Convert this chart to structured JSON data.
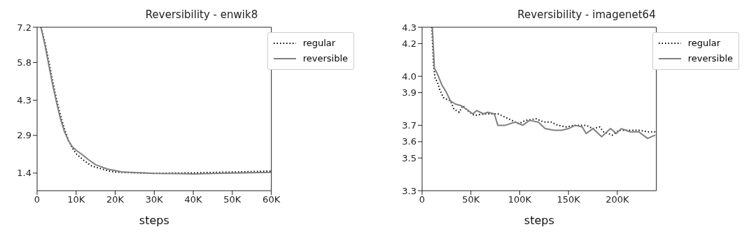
{
  "chart_data": [
    {
      "type": "line",
      "title": "Reversibility - enwik8",
      "xlabel": "steps",
      "xlim": [
        0,
        60000
      ],
      "xticks": [
        0,
        {
          "value": 10000,
          "label": "10K"
        },
        {
          "value": 20000,
          "label": "20K"
        },
        {
          "value": 30000,
          "label": "30K"
        },
        {
          "value": 40000,
          "label": "40K"
        },
        {
          "value": 50000,
          "label": "50K"
        },
        {
          "value": 60000,
          "label": "60K"
        }
      ],
      "ylim": [
        0.7,
        7.2
      ],
      "yticks": [
        1.4,
        2.9,
        4.3,
        5.8,
        7.2
      ],
      "grid": false,
      "legend": "top right",
      "marker": "none",
      "series": [
        {
          "name": "regular",
          "color": "#000000",
          "line_style": "dotted",
          "x": [
            1000,
            2000,
            3000,
            4000,
            5000,
            6000,
            7000,
            8000,
            9000,
            10000,
            12000,
            14000,
            16000,
            18000,
            20000,
            25000,
            30000,
            40000,
            50000,
            60000
          ],
          "values": [
            7.2,
            6.6,
            5.84,
            5.04,
            4.32,
            3.69,
            3.16,
            2.71,
            2.4,
            2.17,
            1.9,
            1.68,
            1.59,
            1.5,
            1.44,
            1.41,
            1.39,
            1.41,
            1.44,
            1.48
          ]
        },
        {
          "name": "reversible",
          "color": "#808080",
          "line_style": "solid",
          "x": [
            1000,
            2000,
            3000,
            4000,
            5000,
            6000,
            7000,
            8000,
            9000,
            10000,
            12000,
            13000,
            15000,
            18000,
            20000,
            22000,
            30000,
            40000,
            50000,
            60000
          ],
          "values": [
            7.2,
            6.5,
            5.7,
            4.9,
            4.2,
            3.55,
            3.05,
            2.7,
            2.45,
            2.31,
            2.08,
            1.95,
            1.73,
            1.56,
            1.5,
            1.44,
            1.39,
            1.37,
            1.4,
            1.43
          ]
        }
      ]
    },
    {
      "type": "line",
      "title": "Reversibility - imagenet64",
      "xlabel": "steps",
      "xlim": [
        0,
        240000
      ],
      "xticks": [
        0,
        {
          "value": 50000,
          "label": "50K"
        },
        {
          "value": 100000,
          "label": "100K"
        },
        {
          "value": 150000,
          "label": "150K"
        },
        {
          "value": 200000,
          "label": "200K"
        }
      ],
      "ylim": [
        3.3,
        4.3
      ],
      "yticks": [
        3.3,
        3.5,
        3.6,
        3.7,
        3.9,
        {
          "value": 4.0,
          "label": "4.0"
        },
        4.2,
        4.3
      ],
      "grid": false,
      "legend": "top right",
      "marker": "none",
      "series": [
        {
          "name": "regular",
          "color": "#000000",
          "line_style": "dotted",
          "x": [
            10000,
            11700,
            13500,
            15300,
            18000,
            21700,
            25000,
            29000,
            32500,
            38000,
            41500,
            48700,
            54000,
            63000,
            70000,
            77600,
            85000,
            92000,
            99000,
            106000,
            117000,
            124500,
            132000,
            139000,
            148000,
            155000,
            168000,
            175000,
            182000,
            186000,
            195000,
            202000,
            213000,
            222000,
            231000,
            239000
          ],
          "values": [
            4.3,
            4.07,
            3.98,
            3.97,
            3.92,
            3.87,
            3.86,
            3.85,
            3.8,
            3.78,
            3.82,
            3.78,
            3.76,
            3.77,
            3.77,
            3.77,
            3.75,
            3.73,
            3.71,
            3.73,
            3.74,
            3.72,
            3.72,
            3.7,
            3.69,
            3.7,
            3.7,
            3.68,
            3.69,
            3.66,
            3.64,
            3.67,
            3.67,
            3.67,
            3.66,
            3.66
          ]
        },
        {
          "name": "reversible",
          "color": "#808080",
          "line_style": "solid",
          "x": [
            10500,
            12600,
            16000,
            20000,
            25000,
            29000,
            34000,
            40000,
            45000,
            52000,
            56000,
            63000,
            67000,
            74000,
            77600,
            85000,
            95700,
            103000,
            110000,
            119000,
            126000,
            135000,
            143000,
            150000,
            157000,
            164000,
            168000,
            175000,
            184000,
            193000,
            199000,
            204000,
            213000,
            222000,
            231000,
            239000
          ],
          "values": [
            4.3,
            4.05,
            4.01,
            3.95,
            3.9,
            3.85,
            3.83,
            3.82,
            3.8,
            3.77,
            3.79,
            3.77,
            3.78,
            3.77,
            3.7,
            3.7,
            3.72,
            3.7,
            3.73,
            3.72,
            3.68,
            3.67,
            3.67,
            3.68,
            3.7,
            3.69,
            3.65,
            3.68,
            3.63,
            3.68,
            3.65,
            3.68,
            3.66,
            3.66,
            3.62,
            3.64
          ]
        }
      ]
    }
  ]
}
